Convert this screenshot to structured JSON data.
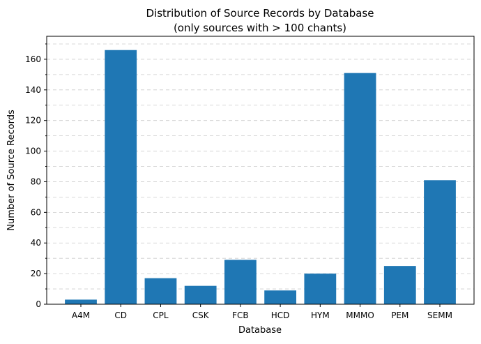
{
  "chart_data": {
    "type": "bar",
    "title": "Distribution of Source Records by Database",
    "subtitle": "(only sources with > 100 chants)",
    "xlabel": "Database",
    "ylabel": "Number of Source Records",
    "categories": [
      "A4M",
      "CD",
      "CPL",
      "CSK",
      "FCB",
      "HCD",
      "HYM",
      "MMMO",
      "PEM",
      "SEMM"
    ],
    "values": [
      3,
      166,
      17,
      12,
      29,
      9,
      20,
      151,
      25,
      81
    ],
    "ylim": [
      0,
      175
    ],
    "yticks": [
      0,
      20,
      40,
      60,
      80,
      100,
      120,
      140,
      160
    ],
    "grid": "y-major-and-minor-dashed",
    "bar_color": "#1f77b4"
  }
}
